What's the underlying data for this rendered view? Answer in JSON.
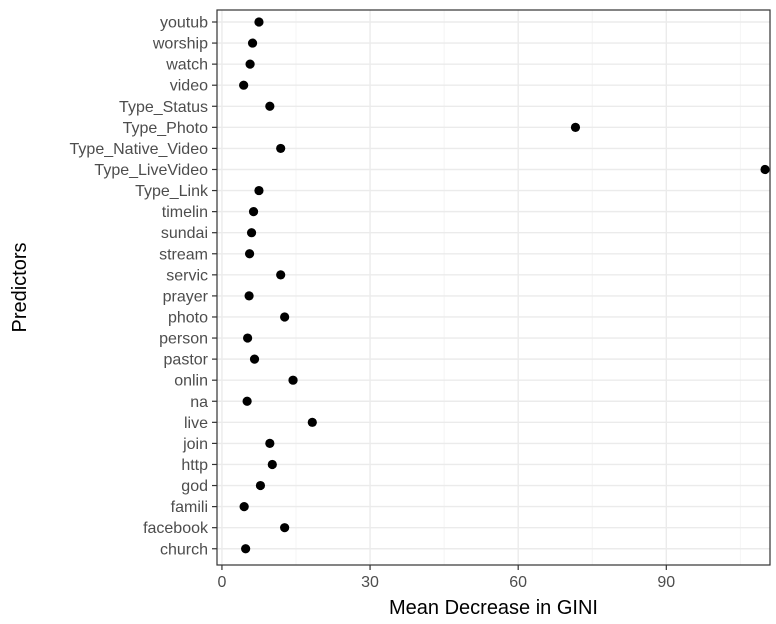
{
  "chart_data": {
    "type": "scatter",
    "xlabel": "Mean Decrease in GINI",
    "ylabel": "Predictors",
    "xlim": [
      -1,
      111
    ],
    "x_ticks": [
      0,
      30,
      60,
      90
    ],
    "x_tick_labels": [
      "0",
      "30",
      "60",
      "90"
    ],
    "grid": true,
    "categories": [
      "church",
      "facebook",
      "famili",
      "god",
      "http",
      "join",
      "live",
      "na",
      "onlin",
      "pastor",
      "person",
      "photo",
      "prayer",
      "servic",
      "stream",
      "sundai",
      "timelin",
      "Type_Link",
      "Type_LiveVideo",
      "Type_Native_Video",
      "Type_Photo",
      "Type_Status",
      "video",
      "watch",
      "worship",
      "youtub"
    ],
    "values": [
      4.8,
      12.7,
      4.5,
      7.8,
      10.2,
      9.7,
      18.3,
      5.1,
      14.4,
      6.6,
      5.2,
      12.7,
      5.5,
      11.9,
      5.6,
      6.0,
      6.4,
      7.5,
      110.0,
      11.9,
      71.6,
      9.7,
      4.4,
      5.7,
      6.2,
      7.5
    ],
    "colors": {
      "point": "#000000",
      "panel_border": "#333333",
      "grid_major": "#ebebeb",
      "grid_minor": "#f4f4f4",
      "tick_text": "#4d4d4d"
    }
  }
}
